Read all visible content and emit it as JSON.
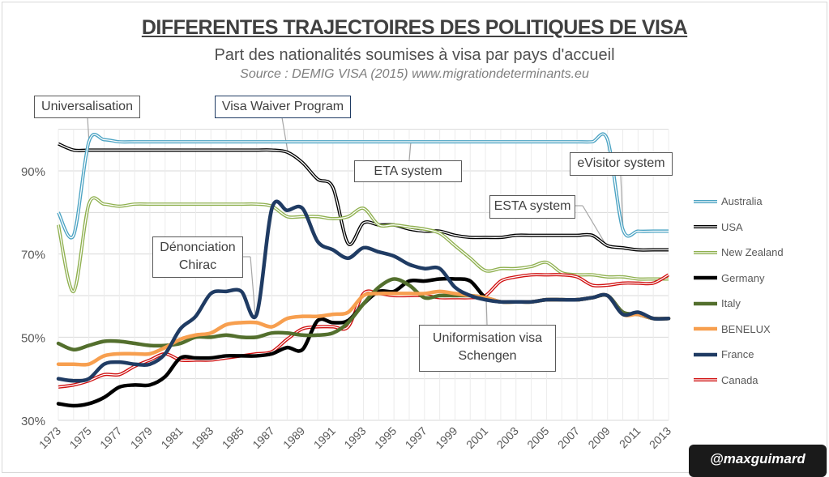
{
  "chart_data": {
    "type": "line",
    "title": "DIFFERENTES TRAJECTOIRES DES POLITIQUES DE VISA",
    "subtitle": "Part des nationalités soumises à visa par pays d'accueil",
    "source": "Source :  DEMIG VISA (2015) www.migrationdeterminants.eu",
    "xlabel": "",
    "ylabel": "",
    "x_start": 1973,
    "x_end": 2013,
    "x_tick_labels": [
      "1973",
      "1975",
      "1977",
      "1979",
      "1981",
      "1983",
      "1985",
      "1987",
      "1989",
      "1991",
      "1993",
      "1995",
      "1997",
      "1999",
      "2001",
      "2003",
      "2005",
      "2007",
      "2009",
      "2011",
      "2013"
    ],
    "y_tick_labels": [
      "30%",
      "50%",
      "70%",
      "90%"
    ],
    "ylim": [
      30,
      100
    ],
    "grid": true,
    "legend_position": "right",
    "series": [
      {
        "name": "Australia",
        "color": "#4ba3c3",
        "style": "double",
        "values": [
          80,
          74.5,
          97,
          97.5,
          97,
          97,
          97,
          97,
          97,
          97,
          97,
          97,
          97,
          97,
          97,
          97,
          97,
          97,
          97,
          97,
          97,
          97,
          97,
          97,
          97,
          97,
          97,
          97,
          97,
          97,
          97,
          97,
          97,
          97,
          97,
          97,
          97.5,
          76,
          75.5,
          75.5,
          75.5
        ]
      },
      {
        "name": "USA",
        "color": "#000000",
        "style": "double",
        "values": [
          96.5,
          95,
          95,
          95,
          95,
          95,
          95,
          95,
          95,
          95,
          95,
          95,
          95,
          95,
          95,
          94.5,
          92,
          88,
          86,
          72.5,
          77.5,
          77,
          77,
          76,
          75.5,
          75.5,
          74.5,
          74,
          74,
          74,
          74.5,
          74.5,
          74.5,
          74.5,
          74.5,
          74.5,
          72,
          71.5,
          71,
          71,
          71
        ]
      },
      {
        "name": "New Zealand",
        "color": "#8fb04f",
        "style": "double",
        "values": [
          77,
          61,
          82,
          82,
          81.5,
          82,
          82,
          82,
          82,
          82,
          82,
          82,
          82,
          82,
          81.5,
          79,
          79,
          79,
          78.5,
          79,
          81,
          77,
          77,
          76.5,
          76,
          75,
          72,
          69,
          66,
          66.5,
          66.5,
          67,
          68,
          65.5,
          65,
          65,
          64.5,
          64.5,
          64,
          64,
          64
        ]
      },
      {
        "name": "Germany",
        "color": "#000000",
        "style": "thick",
        "values": [
          34,
          33.5,
          34,
          35.5,
          38,
          38.5,
          38.5,
          40.5,
          45,
          45,
          45,
          45.5,
          45.5,
          45.5,
          46,
          47.5,
          47,
          54,
          53.5,
          54,
          58,
          61,
          61,
          63.5,
          63.5,
          64,
          64,
          63.5,
          59.5,
          58.5,
          58.5,
          58.5,
          59,
          59,
          59,
          59.5,
          60,
          56,
          55.5,
          54.5,
          54.5
        ]
      },
      {
        "name": "Italy",
        "color": "#536f2d",
        "style": "thick",
        "values": [
          48.5,
          47,
          48,
          49,
          49,
          48.5,
          48,
          48,
          48.5,
          50,
          50,
          50.5,
          50,
          50,
          51,
          51,
          50.5,
          50.5,
          51,
          53.5,
          58,
          62,
          64,
          62.5,
          59.5,
          60,
          60,
          60,
          59.5,
          58.5,
          58.5,
          58.5,
          59,
          59,
          59,
          59.5,
          60,
          56,
          55.5,
          54.5,
          54.5
        ]
      },
      {
        "name": "BENELUX",
        "color": "#f79f4f",
        "style": "thick",
        "values": [
          43.5,
          43.5,
          43.5,
          45.5,
          46,
          46,
          46,
          47.5,
          49.5,
          50.5,
          51,
          53,
          53.5,
          53.5,
          52.5,
          54.5,
          55,
          55,
          55.5,
          56,
          60,
          60.5,
          60.5,
          60.5,
          60.5,
          61,
          60.5,
          60,
          59.5,
          58.5,
          58.5,
          58.5,
          59,
          59,
          59,
          59.5,
          60,
          55.5,
          55.5,
          54.5,
          54.5
        ]
      },
      {
        "name": "France",
        "color": "#1f3b63",
        "style": "thick",
        "values": [
          40,
          39.5,
          40,
          43.5,
          44,
          43.5,
          43.5,
          46,
          52,
          55,
          60.5,
          61,
          61,
          55.5,
          81,
          80.5,
          81,
          73,
          71,
          69,
          71.5,
          70.5,
          69.5,
          67.5,
          66.5,
          66.5,
          62,
          60,
          59,
          58.5,
          58.5,
          58.5,
          59,
          59,
          59,
          59.5,
          60,
          55.5,
          56,
          54.5,
          54.5
        ]
      },
      {
        "name": "Canada",
        "color": "#d01010",
        "style": "double",
        "values": [
          38,
          38.5,
          39.5,
          41,
          41,
          43,
          44.5,
          46,
          44.5,
          44.5,
          44.5,
          45,
          45.5,
          46,
          46.5,
          49.5,
          52,
          52.5,
          52.5,
          52.5,
          60.5,
          60.5,
          60,
          60,
          60,
          59.5,
          59.5,
          59.5,
          60,
          63.5,
          64.5,
          65,
          65,
          65,
          64.5,
          62.5,
          62.5,
          63,
          63,
          63,
          65
        ]
      }
    ],
    "annotations": [
      "Universalisation",
      "Visa Waiver Program",
      "Dénonciation Chirac",
      "ETA system",
      "eVisitor system",
      "ESTA system",
      "Uniformisation visa Schengen"
    ]
  },
  "annotations": {
    "universalisation": "Universalisation",
    "vwp": "Visa Waiver Program",
    "chirac_1": "Dénonciation",
    "chirac_2": "Chirac",
    "eta": "ETA system",
    "evisitor": "eVisitor system",
    "esta": "ESTA system",
    "schengen_1": "Uniformisation visa",
    "schengen_2": "Schengen"
  },
  "watermark": "@maxguimard"
}
